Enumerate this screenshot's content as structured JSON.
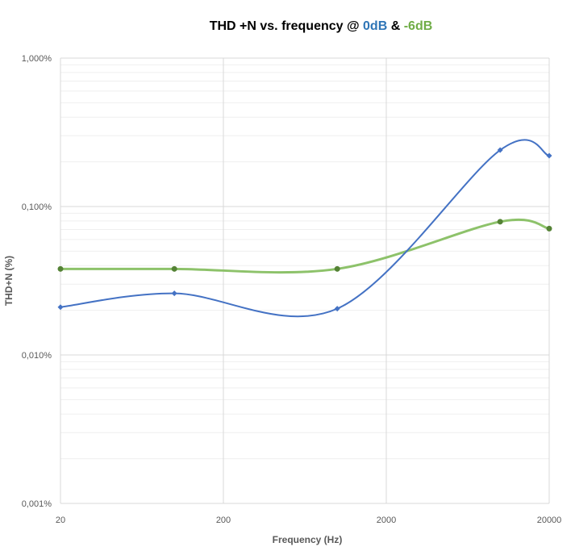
{
  "chart_data": {
    "type": "line",
    "title": {
      "prefix": "THD +N vs. frequency @ ",
      "series1_label": "0dB",
      "joiner": " & ",
      "series2_label": "-6dB"
    },
    "xlabel": "Frequency (Hz)",
    "ylabel": "THD+N (%)",
    "x_scale": "log",
    "y_scale": "log",
    "xlim": [
      20,
      20000
    ],
    "ylim": [
      0.001,
      1.0
    ],
    "x_ticks": [
      {
        "value": 20,
        "label": "20"
      },
      {
        "value": 200,
        "label": "200"
      },
      {
        "value": 2000,
        "label": "2000"
      },
      {
        "value": 20000,
        "label": "20000"
      }
    ],
    "y_ticks": [
      {
        "value": 0.001,
        "label": "0,001%"
      },
      {
        "value": 0.01,
        "label": "0,010%"
      },
      {
        "value": 0.1,
        "label": "0,100%"
      },
      {
        "value": 1.0,
        "label": "1,000%"
      }
    ],
    "grid": true,
    "smooth": true,
    "series": [
      {
        "color": "#4472c4",
        "marker": "diamond",
        "x": [
          20,
          100,
          1000,
          10000,
          20000
        ],
        "y": [
          0.021,
          0.026,
          0.0205,
          0.24,
          0.22
        ]
      },
      {
        "color": "#8dc26a",
        "marker_color": "#548235",
        "marker": "circle",
        "x": [
          20,
          100,
          1000,
          10000,
          20000
        ],
        "y": [
          0.038,
          0.038,
          0.038,
          0.079,
          0.071
        ]
      }
    ],
    "title_colors": {
      "series1": "#2e75b6",
      "series2": "#70ad47"
    }
  }
}
